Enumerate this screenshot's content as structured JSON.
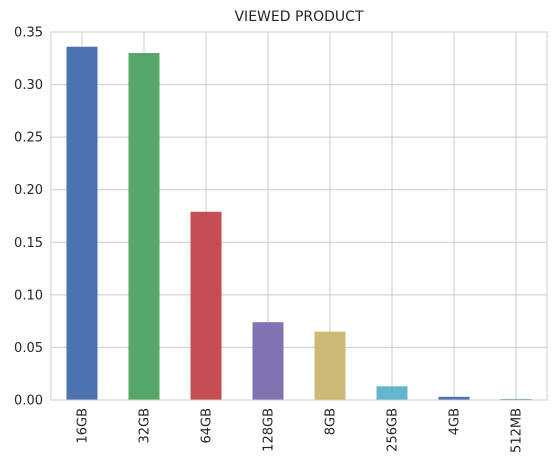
{
  "chart_data": {
    "type": "bar",
    "title": "VIEWED PRODUCT",
    "xlabel": "",
    "ylabel": "",
    "categories": [
      "16GB",
      "32GB",
      "64GB",
      "128GB",
      "8GB",
      "256GB",
      "4GB",
      "512MB"
    ],
    "values": [
      0.336,
      0.33,
      0.179,
      0.074,
      0.065,
      0.013,
      0.003,
      0.001
    ],
    "colors": [
      "#4c72b0",
      "#55a868",
      "#c44e52",
      "#8172b2",
      "#ccb974",
      "#64b5cd",
      "#4c72b0",
      "#55a868"
    ],
    "ylim": [
      0,
      0.35
    ],
    "yticks": [
      "0.00",
      "0.05",
      "0.10",
      "0.15",
      "0.20",
      "0.25",
      "0.30",
      "0.35"
    ],
    "grid": true,
    "legend": "none"
  }
}
